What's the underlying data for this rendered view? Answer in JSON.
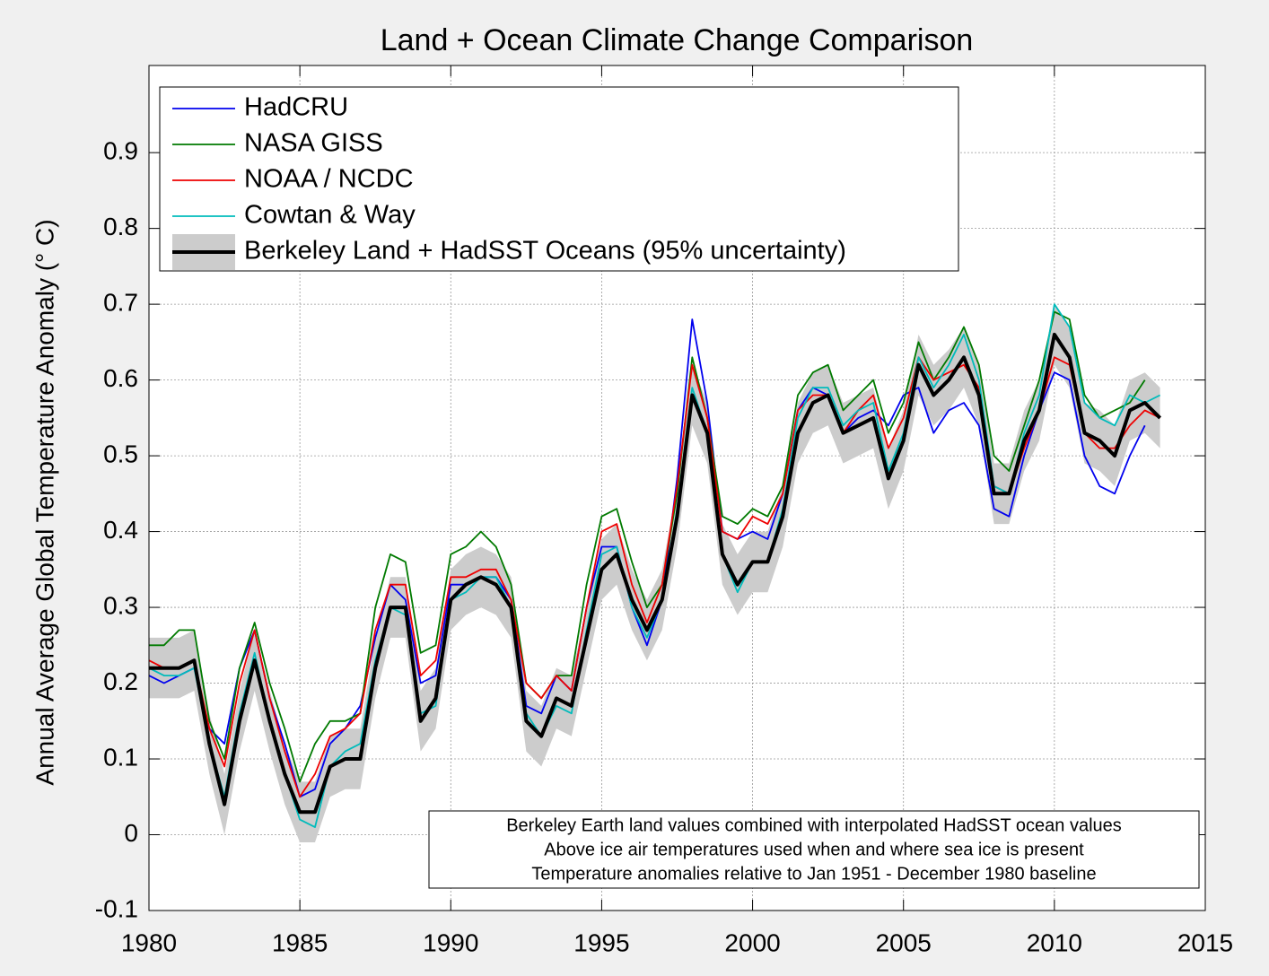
{
  "chart_data": {
    "type": "line",
    "title": "Land + Ocean Climate Change Comparison",
    "y_label": "Annual Average Global Temperature Anomaly (° C)",
    "annotation": [
      "Berkeley Earth land values combined with interpolated HadSST ocean values",
      "Above ice air temperatures used when and where sea ice is present",
      "Temperature anomalies relative to Jan 1951 - December 1980 baseline"
    ],
    "xlim": [
      1980,
      2015
    ],
    "xticks": [
      1980,
      1985,
      1990,
      1995,
      2000,
      2005,
      2010,
      2015
    ],
    "ylim": [
      -0.1,
      1.015
    ],
    "yticks": [
      -0.1,
      0,
      0.1,
      0.2,
      0.3,
      0.4,
      0.5,
      0.6,
      0.7,
      0.8,
      0.9
    ],
    "grid": true,
    "legend": "upper left",
    "x": [
      1980,
      1980.5,
      1981,
      1981.5,
      1982,
      1982.5,
      1983,
      1983.5,
      1984,
      1984.5,
      1985,
      1985.5,
      1986,
      1986.5,
      1987,
      1987.5,
      1988,
      1988.5,
      1989,
      1989.5,
      1990,
      1990.5,
      1991,
      1991.5,
      1992,
      1992.5,
      1993,
      1993.5,
      1994,
      1994.5,
      1995,
      1995.5,
      1996,
      1996.5,
      1997,
      1997.5,
      1998,
      1998.5,
      1999,
      1999.5,
      2000,
      2000.5,
      2001,
      2001.5,
      2002,
      2002.5,
      2003,
      2003.5,
      2004,
      2004.5,
      2005,
      2005.5,
      2006,
      2006.5,
      2007,
      2007.5,
      2008,
      2008.5,
      2009,
      2009.5,
      2010,
      2010.5,
      2011,
      2011.5,
      2012,
      2012.5,
      2013,
      2013.5
    ],
    "series": [
      {
        "name": "HadCRU",
        "color": "#0000ee",
        "values": [
          0.21,
          0.2,
          0.21,
          0.22,
          0.14,
          0.12,
          0.22,
          0.27,
          0.18,
          0.12,
          0.05,
          0.06,
          0.12,
          0.14,
          0.17,
          0.26,
          0.33,
          0.31,
          0.2,
          0.21,
          0.33,
          0.33,
          0.34,
          0.34,
          0.31,
          0.17,
          0.16,
          0.21,
          0.19,
          0.3,
          0.38,
          0.38,
          0.3,
          0.25,
          0.31,
          0.47,
          0.68,
          0.57,
          0.4,
          0.39,
          0.4,
          0.39,
          0.45,
          0.56,
          0.59,
          0.58,
          0.53,
          0.55,
          0.56,
          0.54,
          0.58,
          0.59,
          0.53,
          0.56,
          0.57,
          0.54,
          0.43,
          0.42,
          0.5,
          0.56,
          0.61,
          0.6,
          0.5,
          0.46,
          0.45,
          0.5,
          0.54,
          null
        ]
      },
      {
        "name": "NASA GISS",
        "color": "#007a00",
        "values": [
          0.25,
          0.25,
          0.27,
          0.27,
          0.15,
          0.1,
          0.22,
          0.28,
          0.2,
          0.14,
          0.07,
          0.12,
          0.15,
          0.15,
          0.16,
          0.3,
          0.37,
          0.36,
          0.24,
          0.25,
          0.37,
          0.38,
          0.4,
          0.38,
          0.33,
          0.2,
          0.18,
          0.21,
          0.21,
          0.33,
          0.42,
          0.43,
          0.36,
          0.3,
          0.33,
          0.45,
          0.63,
          0.55,
          0.42,
          0.41,
          0.43,
          0.42,
          0.46,
          0.58,
          0.61,
          0.62,
          0.56,
          0.58,
          0.6,
          0.53,
          0.57,
          0.65,
          0.6,
          0.63,
          0.67,
          0.62,
          0.5,
          0.48,
          0.54,
          0.6,
          0.69,
          0.68,
          0.58,
          0.55,
          0.56,
          0.57,
          0.6,
          null
        ]
      },
      {
        "name": "NOAA / NCDC",
        "color": "#ee0000",
        "values": [
          0.23,
          0.22,
          0.22,
          0.23,
          0.14,
          0.09,
          0.2,
          0.27,
          0.18,
          0.11,
          0.05,
          0.08,
          0.13,
          0.14,
          0.16,
          0.27,
          0.33,
          0.33,
          0.21,
          0.23,
          0.34,
          0.34,
          0.35,
          0.35,
          0.31,
          0.2,
          0.18,
          0.21,
          0.19,
          0.3,
          0.4,
          0.41,
          0.33,
          0.28,
          0.33,
          0.46,
          0.62,
          0.55,
          0.4,
          0.39,
          0.42,
          0.41,
          0.45,
          0.56,
          0.58,
          0.58,
          0.53,
          0.56,
          0.58,
          0.51,
          0.55,
          0.63,
          0.6,
          0.61,
          0.62,
          0.59,
          0.46,
          0.45,
          0.51,
          0.56,
          0.63,
          0.62,
          0.53,
          0.51,
          0.51,
          0.54,
          0.56,
          0.55
        ]
      },
      {
        "name": "Cowtan & Way",
        "color": "#00bbbb",
        "values": [
          0.22,
          0.21,
          0.21,
          0.22,
          0.12,
          0.05,
          0.16,
          0.24,
          0.15,
          0.08,
          0.02,
          0.01,
          0.09,
          0.11,
          0.12,
          0.23,
          0.3,
          0.29,
          0.16,
          0.17,
          0.31,
          0.32,
          0.34,
          0.34,
          0.3,
          0.16,
          0.13,
          0.17,
          0.16,
          0.27,
          0.37,
          0.38,
          0.3,
          0.26,
          0.31,
          0.43,
          0.59,
          0.53,
          0.37,
          0.32,
          0.36,
          0.36,
          0.43,
          0.55,
          0.59,
          0.59,
          0.54,
          0.56,
          0.57,
          0.48,
          0.53,
          0.63,
          0.59,
          0.62,
          0.66,
          0.6,
          0.46,
          0.45,
          0.53,
          0.58,
          0.7,
          0.67,
          0.57,
          0.55,
          0.54,
          0.58,
          0.57,
          0.58
        ]
      },
      {
        "name": "Berkeley Land + HadSST Oceans (95% uncertainty)",
        "color": "#000000",
        "band_color": "#cccccc",
        "values": [
          0.22,
          0.22,
          0.22,
          0.23,
          0.12,
          0.04,
          0.15,
          0.23,
          0.15,
          0.08,
          0.03,
          0.03,
          0.09,
          0.1,
          0.1,
          0.22,
          0.3,
          0.3,
          0.15,
          0.18,
          0.31,
          0.33,
          0.34,
          0.33,
          0.3,
          0.15,
          0.13,
          0.18,
          0.17,
          0.26,
          0.35,
          0.37,
          0.31,
          0.27,
          0.31,
          0.42,
          0.58,
          0.53,
          0.37,
          0.33,
          0.36,
          0.36,
          0.42,
          0.53,
          0.57,
          0.58,
          0.53,
          0.54,
          0.55,
          0.47,
          0.52,
          0.62,
          0.58,
          0.6,
          0.63,
          0.58,
          0.45,
          0.45,
          0.52,
          0.56,
          0.66,
          0.63,
          0.53,
          0.52,
          0.5,
          0.56,
          0.57,
          0.55
        ],
        "lower": [
          0.18,
          0.18,
          0.18,
          0.19,
          0.08,
          0.0,
          0.11,
          0.19,
          0.11,
          0.04,
          -0.01,
          -0.01,
          0.05,
          0.06,
          0.06,
          0.18,
          0.26,
          0.26,
          0.11,
          0.14,
          0.27,
          0.29,
          0.3,
          0.29,
          0.26,
          0.11,
          0.09,
          0.14,
          0.13,
          0.22,
          0.31,
          0.33,
          0.27,
          0.23,
          0.27,
          0.38,
          0.54,
          0.49,
          0.33,
          0.29,
          0.32,
          0.32,
          0.38,
          0.49,
          0.53,
          0.54,
          0.49,
          0.5,
          0.51,
          0.43,
          0.48,
          0.58,
          0.54,
          0.56,
          0.59,
          0.54,
          0.41,
          0.41,
          0.48,
          0.52,
          0.62,
          0.59,
          0.49,
          0.48,
          0.46,
          0.52,
          0.53,
          0.51
        ],
        "upper": [
          0.26,
          0.26,
          0.26,
          0.27,
          0.16,
          0.08,
          0.19,
          0.27,
          0.19,
          0.12,
          0.07,
          0.07,
          0.13,
          0.14,
          0.14,
          0.26,
          0.34,
          0.34,
          0.19,
          0.22,
          0.35,
          0.37,
          0.38,
          0.37,
          0.34,
          0.19,
          0.17,
          0.22,
          0.21,
          0.3,
          0.39,
          0.41,
          0.35,
          0.31,
          0.35,
          0.46,
          0.62,
          0.57,
          0.41,
          0.37,
          0.4,
          0.4,
          0.46,
          0.57,
          0.61,
          0.62,
          0.57,
          0.58,
          0.59,
          0.51,
          0.56,
          0.66,
          0.62,
          0.64,
          0.67,
          0.62,
          0.49,
          0.49,
          0.56,
          0.6,
          0.7,
          0.67,
          0.57,
          0.56,
          0.54,
          0.6,
          0.61,
          0.59
        ]
      }
    ]
  }
}
